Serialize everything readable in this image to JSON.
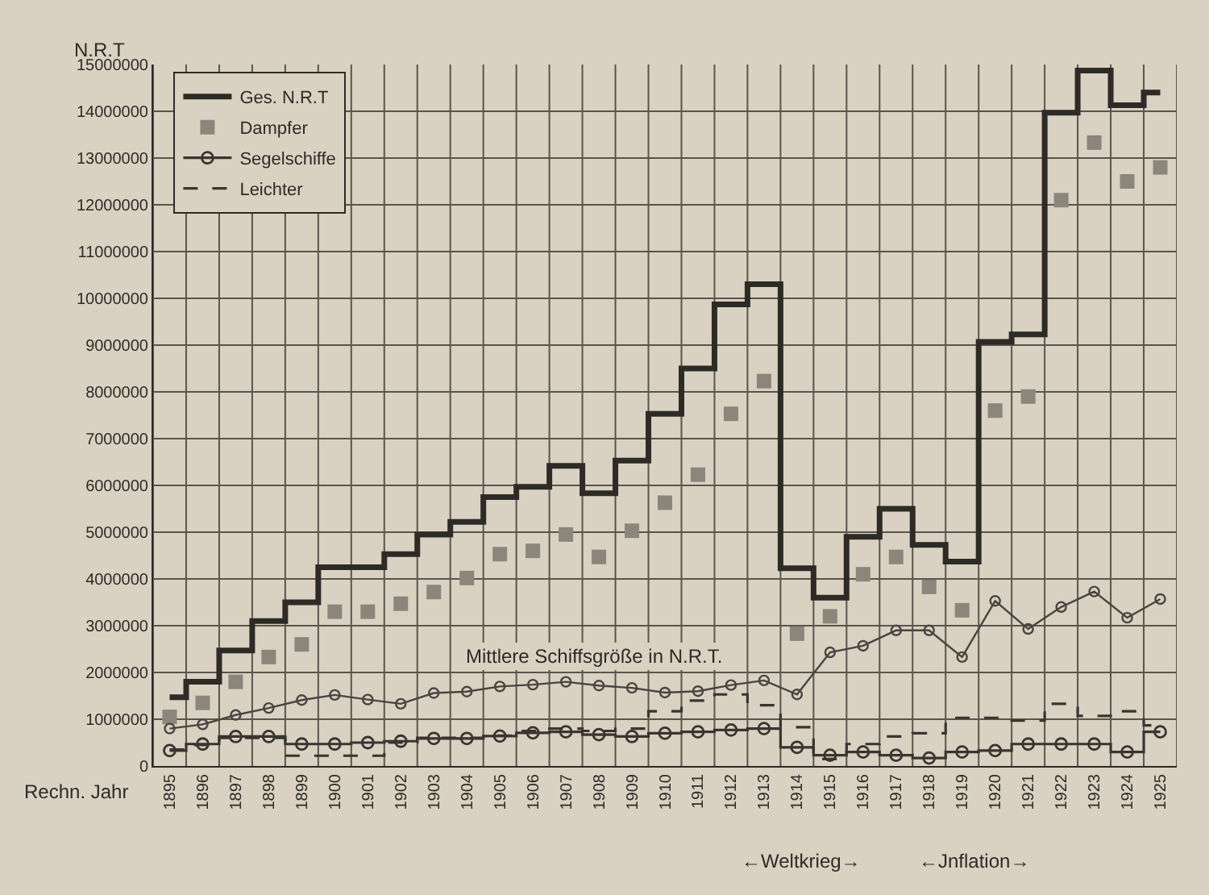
{
  "chart_data": {
    "type": "step",
    "xlabel": "Rechn. Jahr",
    "ylabel": "N.R.T",
    "categories": [
      "1895",
      "1896",
      "1897",
      "1898",
      "1899",
      "1900",
      "1901",
      "1902",
      "1903",
      "1904",
      "1905",
      "1906",
      "1907",
      "1908",
      "1909",
      "1910",
      "1911",
      "1912",
      "1913",
      "1914",
      "1915",
      "1916",
      "1917",
      "1918",
      "1919",
      "1920",
      "1921",
      "1922",
      "1923",
      "1924",
      "1925"
    ],
    "series": [
      {
        "name": "Ges. N.R.T",
        "color": "#2e2a26",
        "marker": "none",
        "line_style": "solid",
        "values": [
          1470000,
          1800000,
          2470000,
          3100000,
          3500000,
          4250000,
          4250000,
          4530000,
          4950000,
          5220000,
          5750000,
          5970000,
          6420000,
          5830000,
          6530000,
          7530000,
          8500000,
          9870000,
          10300000,
          4230000,
          3600000,
          4900000,
          5500000,
          4730000,
          4370000,
          9070000,
          9230000,
          13970000,
          14870000,
          14130000,
          14400000
        ]
      },
      {
        "name": "Dampfer",
        "type": "scatter",
        "color": "#8c857c",
        "marker": "square",
        "values": [
          1050000,
          1350000,
          1800000,
          2330000,
          2600000,
          3300000,
          3300000,
          3470000,
          3720000,
          4020000,
          4530000,
          4600000,
          4950000,
          4470000,
          5030000,
          5630000,
          6230000,
          7530000,
          8230000,
          2830000,
          3200000,
          4100000,
          4470000,
          3830000,
          3330000,
          7600000,
          7900000,
          12100000,
          13330000,
          12500000,
          12800000
        ]
      },
      {
        "name": "Segelschiffe",
        "type": "step",
        "color": "#3a3530",
        "marker": "circle",
        "line_style": "solid",
        "values": [
          330000,
          470000,
          630000,
          630000,
          470000,
          470000,
          500000,
          530000,
          590000,
          590000,
          640000,
          710000,
          730000,
          670000,
          630000,
          700000,
          730000,
          770000,
          800000,
          400000,
          230000,
          300000,
          230000,
          170000,
          300000,
          330000,
          470000,
          470000,
          470000,
          300000,
          730000
        ]
      },
      {
        "name": "Leichter",
        "type": "step",
        "color": "#3a3530",
        "marker": "none",
        "line_style": "dashed",
        "values": [
          350000,
          450000,
          600000,
          600000,
          220000,
          220000,
          220000,
          500000,
          600000,
          600000,
          650000,
          750000,
          800000,
          750000,
          800000,
          1170000,
          1400000,
          1530000,
          1300000,
          830000,
          150000,
          470000,
          630000,
          700000,
          1030000,
          1030000,
          970000,
          1330000,
          1070000,
          1170000,
          870000
        ]
      },
      {
        "type": "line",
        "color": "#4a4540",
        "marker": "circle",
        "line_style": "solid",
        "values": [
          800000,
          890000,
          1090000,
          1240000,
          1410000,
          1520000,
          1420000,
          1330000,
          1560000,
          1590000,
          1700000,
          1740000,
          1800000,
          1720000,
          1670000,
          1570000,
          1600000,
          1730000,
          1830000,
          1530000,
          2430000,
          2570000,
          2900000,
          2900000,
          2330000,
          3530000,
          2930000,
          3400000,
          3730000,
          3170000,
          3570000
        ]
      }
    ],
    "ylim": [
      0,
      15000000
    ],
    "yticks": [
      0,
      1000000,
      2000000,
      3000000,
      4000000,
      5000000,
      6000000,
      7000000,
      8000000,
      9000000,
      10000000,
      11000000,
      12000000,
      13000000,
      14000000,
      15000000
    ],
    "grid": true,
    "legend": "top left",
    "annotations": [
      "Mittlere Schiffsgröße in N.R.T.",
      "←Weltkrieg→",
      "←Jnflation→"
    ]
  }
}
